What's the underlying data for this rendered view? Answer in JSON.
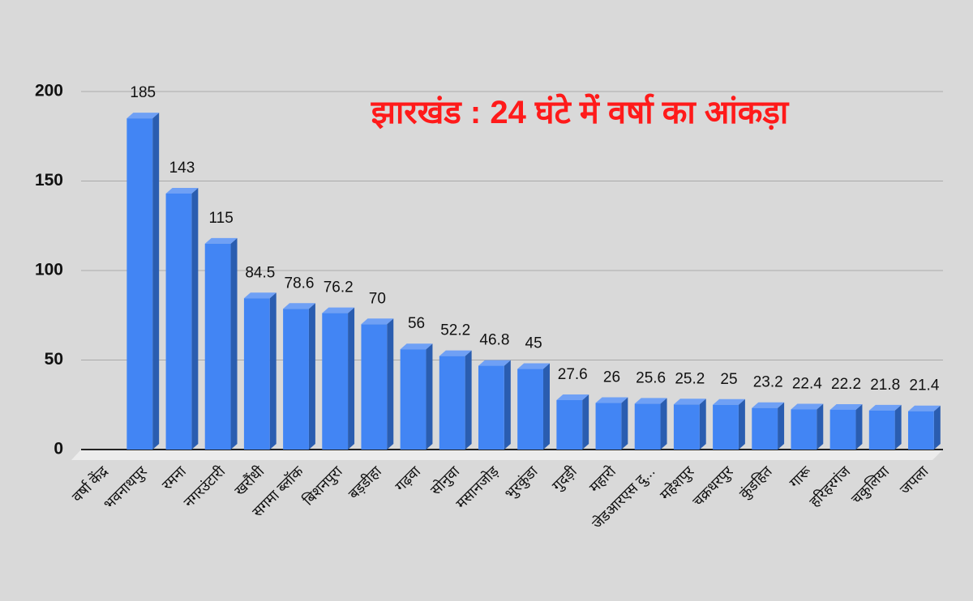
{
  "chart_data": {
    "type": "bar",
    "title": "झारखंड : 24 घंटे में वर्षा का आंकड़ा",
    "categories": [
      "वर्षा केंद्र",
      "भवनाथपुर",
      "रमना",
      "नगरउंटारी",
      "खरौंधी",
      "सगमा ब्लॉक",
      "बिशनपुरा",
      "बड़डीहा",
      "गढ़वा",
      "सोनुवा",
      "मसानजोड़",
      "भुरकुंडा",
      "गुदड़ी",
      "महारो",
      "जेडआरएस दु...",
      "महेशपुर",
      "चक्रधरपुर",
      "कुंडहित",
      "गारू",
      "हरिहरगंज",
      "चकुलिया",
      "जपला"
    ],
    "values": [
      null,
      185,
      143,
      115,
      84.5,
      78.6,
      76.2,
      70,
      56,
      52.2,
      46.8,
      45,
      27.6,
      26,
      25.6,
      25.2,
      25,
      23.2,
      22.4,
      22.2,
      21.8,
      21.4
    ],
    "color": "#4285f4",
    "ylim": [
      0,
      200
    ],
    "yticks": [
      0,
      50,
      100,
      150,
      200
    ],
    "grid": true
  }
}
